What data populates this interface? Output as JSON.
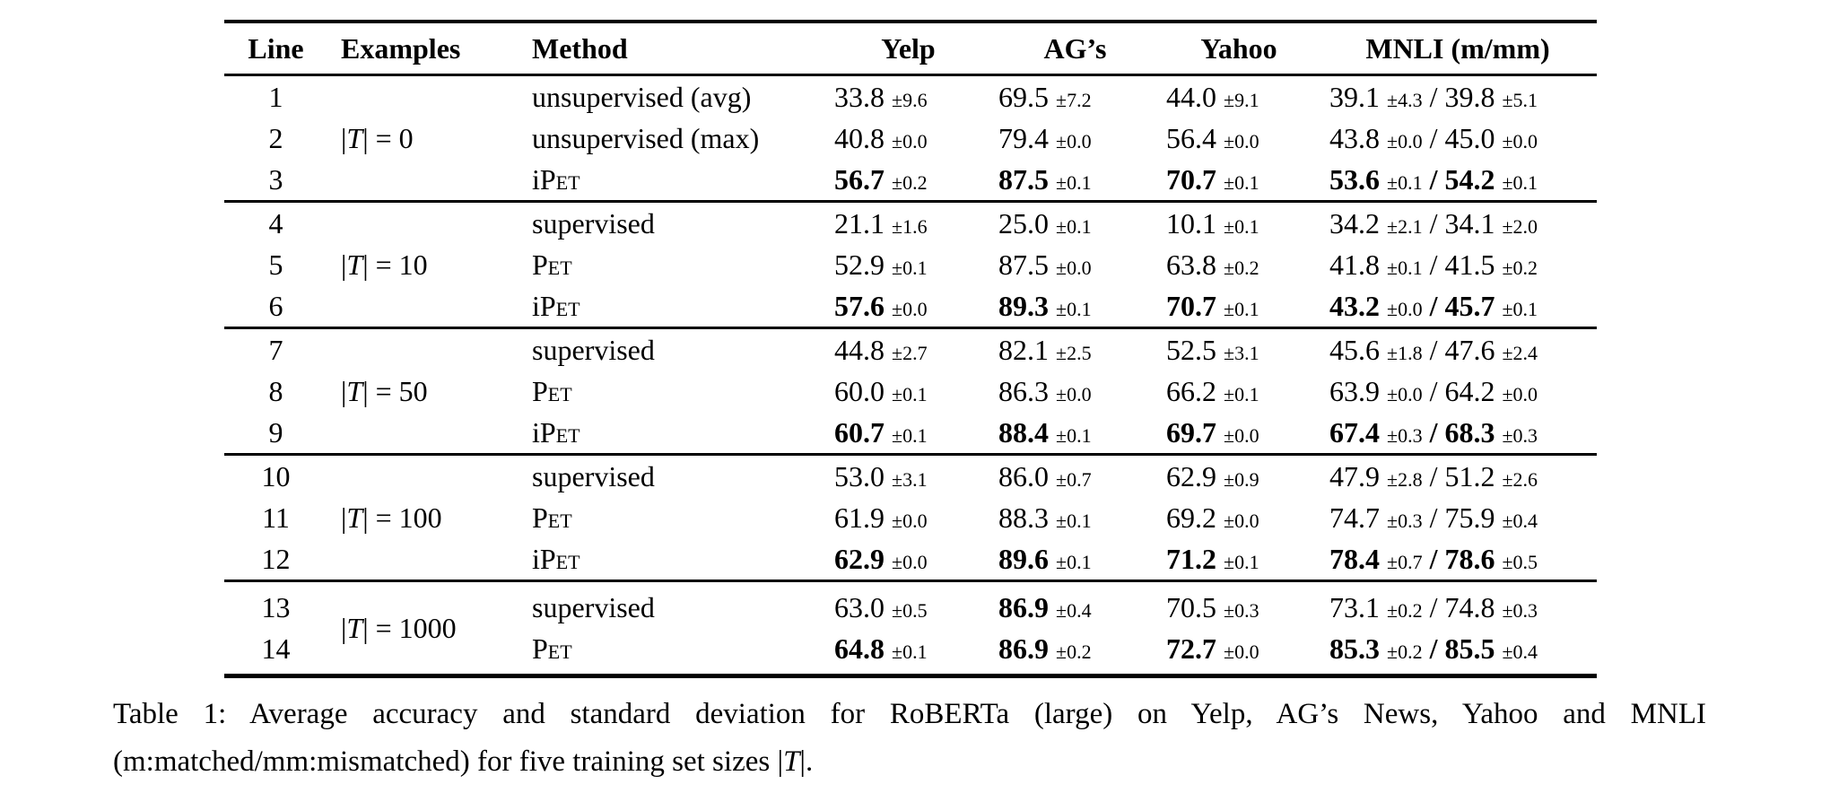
{
  "page": {
    "background_color": "#ffffff",
    "text_color": "#000000"
  },
  "table": {
    "headers": {
      "line": "Line",
      "examples": "Examples",
      "method": "Method",
      "yelp": "Yelp",
      "ags": "AG’s",
      "yahoo": "Yahoo",
      "mnli": "MNLI (m/mm)"
    },
    "mnli_separator": " / ",
    "blocks": [
      {
        "examples": [
          {
            "t": "|"
          },
          {
            "t": "T",
            "it": true
          },
          {
            "t": "| = 0"
          }
        ],
        "rows": [
          {
            "line": "1",
            "method": [
              {
                "t": "unsupervised (avg)"
              }
            ],
            "yelp": {
              "v": "33.8",
              "s": "±9.6"
            },
            "ags": {
              "v": "69.5",
              "s": "±7.2"
            },
            "yahoo": {
              "v": "44.0",
              "s": "±9.1"
            },
            "mnli_m": {
              "v": "39.1",
              "s": "±4.3"
            },
            "mnli_mm": {
              "v": "39.8",
              "s": "±5.1"
            }
          },
          {
            "line": "2",
            "method": [
              {
                "t": "unsupervised (max)"
              }
            ],
            "yelp": {
              "v": "40.8",
              "s": "±0.0"
            },
            "ags": {
              "v": "79.4",
              "s": "±0.0"
            },
            "yahoo": {
              "v": "56.4",
              "s": "±0.0"
            },
            "mnli_m": {
              "v": "43.8",
              "s": "±0.0"
            },
            "mnli_mm": {
              "v": "45.0",
              "s": "±0.0"
            }
          },
          {
            "line": "3",
            "method": [
              {
                "t": "i"
              },
              {
                "t": "Pet",
                "sc": true
              }
            ],
            "yelp": {
              "v": "56.7",
              "s": "±0.2",
              "b": true
            },
            "ags": {
              "v": "87.5",
              "s": "±0.1",
              "b": true
            },
            "yahoo": {
              "v": "70.7",
              "s": "±0.1",
              "b": true
            },
            "mnli_m": {
              "v": "53.6",
              "s": "±0.1",
              "b": true
            },
            "mnli_mm": {
              "v": "54.2",
              "s": "±0.1",
              "b": true
            }
          }
        ]
      },
      {
        "examples": [
          {
            "t": "|"
          },
          {
            "t": "T",
            "it": true
          },
          {
            "t": "| = 10"
          }
        ],
        "rows": [
          {
            "line": "4",
            "method": [
              {
                "t": "supervised"
              }
            ],
            "yelp": {
              "v": "21.1",
              "s": "±1.6"
            },
            "ags": {
              "v": "25.0",
              "s": "±0.1"
            },
            "yahoo": {
              "v": "10.1",
              "s": "±0.1"
            },
            "mnli_m": {
              "v": "34.2",
              "s": "±2.1"
            },
            "mnli_mm": {
              "v": "34.1",
              "s": "±2.0"
            }
          },
          {
            "line": "5",
            "method": [
              {
                "t": "Pet",
                "sc": true
              }
            ],
            "yelp": {
              "v": "52.9",
              "s": "±0.1"
            },
            "ags": {
              "v": "87.5",
              "s": "±0.0"
            },
            "yahoo": {
              "v": "63.8",
              "s": "±0.2"
            },
            "mnli_m": {
              "v": "41.8",
              "s": "±0.1"
            },
            "mnli_mm": {
              "v": "41.5",
              "s": "±0.2"
            }
          },
          {
            "line": "6",
            "method": [
              {
                "t": "i"
              },
              {
                "t": "Pet",
                "sc": true
              }
            ],
            "yelp": {
              "v": "57.6",
              "s": "±0.0",
              "b": true
            },
            "ags": {
              "v": "89.3",
              "s": "±0.1",
              "b": true
            },
            "yahoo": {
              "v": "70.7",
              "s": "±0.1",
              "b": true
            },
            "mnli_m": {
              "v": "43.2",
              "s": "±0.0",
              "b": true
            },
            "mnli_mm": {
              "v": "45.7",
              "s": "±0.1",
              "b": true
            }
          }
        ]
      },
      {
        "examples": [
          {
            "t": "|"
          },
          {
            "t": "T",
            "it": true
          },
          {
            "t": "| = 50"
          }
        ],
        "rows": [
          {
            "line": "7",
            "method": [
              {
                "t": "supervised"
              }
            ],
            "yelp": {
              "v": "44.8",
              "s": "±2.7"
            },
            "ags": {
              "v": "82.1",
              "s": "±2.5"
            },
            "yahoo": {
              "v": "52.5",
              "s": "±3.1"
            },
            "mnli_m": {
              "v": "45.6",
              "s": "±1.8"
            },
            "mnli_mm": {
              "v": "47.6",
              "s": "±2.4"
            }
          },
          {
            "line": "8",
            "method": [
              {
                "t": "Pet",
                "sc": true
              }
            ],
            "yelp": {
              "v": "60.0",
              "s": "±0.1"
            },
            "ags": {
              "v": "86.3",
              "s": "±0.0"
            },
            "yahoo": {
              "v": "66.2",
              "s": "±0.1"
            },
            "mnli_m": {
              "v": "63.9",
              "s": "±0.0"
            },
            "mnli_mm": {
              "v": "64.2",
              "s": "±0.0"
            }
          },
          {
            "line": "9",
            "method": [
              {
                "t": "i"
              },
              {
                "t": "Pet",
                "sc": true
              }
            ],
            "yelp": {
              "v": "60.7",
              "s": "±0.1",
              "b": true
            },
            "ags": {
              "v": "88.4",
              "s": "±0.1",
              "b": true
            },
            "yahoo": {
              "v": "69.7",
              "s": "±0.0",
              "b": true
            },
            "mnli_m": {
              "v": "67.4",
              "s": "±0.3",
              "b": true
            },
            "mnli_mm": {
              "v": "68.3",
              "s": "±0.3",
              "b": true
            }
          }
        ]
      },
      {
        "examples": [
          {
            "t": "|"
          },
          {
            "t": "T",
            "it": true
          },
          {
            "t": "| = 100"
          }
        ],
        "rows": [
          {
            "line": "10",
            "method": [
              {
                "t": "supervised"
              }
            ],
            "yelp": {
              "v": "53.0",
              "s": "±3.1"
            },
            "ags": {
              "v": "86.0",
              "s": "±0.7"
            },
            "yahoo": {
              "v": "62.9",
              "s": "±0.9"
            },
            "mnli_m": {
              "v": "47.9",
              "s": "±2.8"
            },
            "mnli_mm": {
              "v": "51.2",
              "s": "±2.6"
            }
          },
          {
            "line": "11",
            "method": [
              {
                "t": "Pet",
                "sc": true
              }
            ],
            "yelp": {
              "v": "61.9",
              "s": "±0.0"
            },
            "ags": {
              "v": "88.3",
              "s": "±0.1"
            },
            "yahoo": {
              "v": "69.2",
              "s": "±0.0"
            },
            "mnli_m": {
              "v": "74.7",
              "s": "±0.3"
            },
            "mnli_mm": {
              "v": "75.9",
              "s": "±0.4"
            }
          },
          {
            "line": "12",
            "method": [
              {
                "t": "i"
              },
              {
                "t": "Pet",
                "sc": true
              }
            ],
            "yelp": {
              "v": "62.9",
              "s": "±0.0",
              "b": true
            },
            "ags": {
              "v": "89.6",
              "s": "±0.1",
              "b": true
            },
            "yahoo": {
              "v": "71.2",
              "s": "±0.1",
              "b": true
            },
            "mnli_m": {
              "v": "78.4",
              "s": "±0.7",
              "b": true
            },
            "mnli_mm": {
              "v": "78.6",
              "s": "±0.5",
              "b": true
            }
          }
        ]
      },
      {
        "examples": [
          {
            "t": "|"
          },
          {
            "t": "T",
            "it": true
          },
          {
            "t": "| = 1000"
          }
        ],
        "rows": [
          {
            "line": "13",
            "method": [
              {
                "t": "supervised"
              }
            ],
            "yelp": {
              "v": "63.0",
              "s": "±0.5"
            },
            "ags": {
              "v": "86.9",
              "s": "±0.4",
              "b": true
            },
            "yahoo": {
              "v": "70.5",
              "s": "±0.3"
            },
            "mnli_m": {
              "v": "73.1",
              "s": "±0.2"
            },
            "mnli_mm": {
              "v": "74.8",
              "s": "±0.3"
            }
          },
          {
            "line": "14",
            "method": [
              {
                "t": "Pet",
                "sc": true
              }
            ],
            "yelp": {
              "v": "64.8",
              "s": "±0.1",
              "b": true
            },
            "ags": {
              "v": "86.9",
              "s": "±0.2",
              "b": true
            },
            "yahoo": {
              "v": "72.7",
              "s": "±0.0",
              "b": true
            },
            "mnli_m": {
              "v": "85.3",
              "s": "±0.2",
              "b": true
            },
            "mnli_mm": {
              "v": "85.5",
              "s": "±0.4",
              "b": true
            }
          }
        ]
      }
    ]
  },
  "caption": {
    "parts": [
      {
        "t": "Table 1: Average accuracy and standard deviation for RoBERTa (large) on Yelp, AG’s News, Yahoo and MNLI (m:matched/mm:mismatched) for five training set sizes |"
      },
      {
        "t": "T",
        "it": true
      },
      {
        "t": "|."
      }
    ]
  }
}
